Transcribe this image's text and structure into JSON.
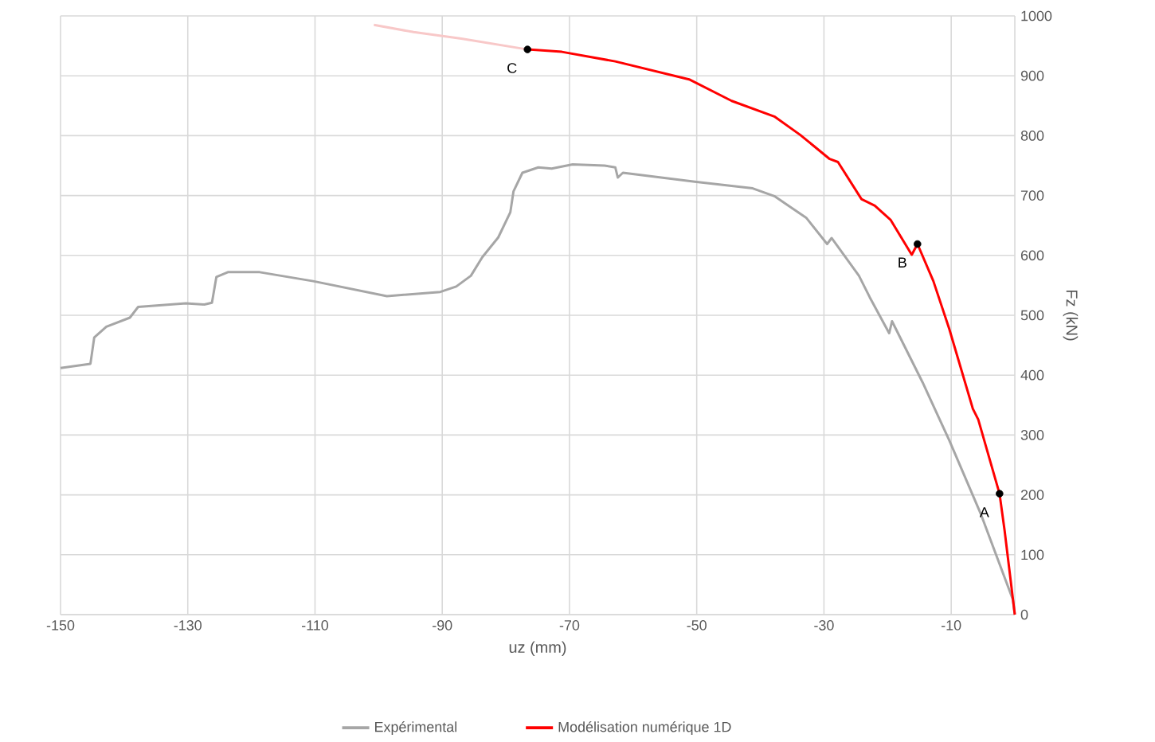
{
  "chart_data": {
    "type": "line",
    "xlabel": "uz (mm)",
    "ylabel": "Fz (kN)",
    "xlim": [
      -150,
      0
    ],
    "ylim": [
      0,
      1000
    ],
    "xticks": [
      -150,
      -130,
      -110,
      -90,
      -70,
      -50,
      -30,
      -10
    ],
    "yticks": [
      0,
      100,
      200,
      300,
      400,
      500,
      600,
      700,
      800,
      900,
      1000
    ],
    "grid": true,
    "legend": "bottom",
    "marker": "none",
    "line_style": "solid",
    "series": [
      {
        "name": "Expérimental",
        "color": "#a6a6a6",
        "x": [
          -150,
          -145.3,
          -144.7,
          -142.8,
          -139.1,
          -137.8,
          -130.3,
          -127.4,
          -126.2,
          -125.5,
          -123.7,
          -118.7,
          -110.3,
          -98.7,
          -90.3,
          -87.8,
          -85.5,
          -83.7,
          -81.2,
          -79.3,
          -78.8,
          -77.4,
          -74.9,
          -72.8,
          -69.5,
          -64.5,
          -62.8,
          -62.4,
          -61.6,
          -50.3,
          -41.2,
          -37.8,
          -32.8,
          -29.5,
          -28.8,
          -24.5,
          -22.8,
          -19.75,
          -19.3,
          -14.5,
          -10.3,
          -5.3,
          -0.3,
          0
        ],
        "values": [
          412,
          419,
          463,
          481,
          496,
          514,
          520,
          518,
          521,
          564,
          572,
          572,
          557,
          532,
          539,
          548,
          566,
          597,
          630,
          672,
          707,
          738,
          747,
          745,
          752,
          750,
          747,
          730,
          738,
          723,
          712,
          699,
          663,
          619,
          629,
          566,
          530,
          470,
          490,
          388,
          291,
          167,
          25,
          0
        ]
      },
      {
        "name": "Modélisation numérique 1D",
        "color": "#ff0000",
        "x": [
          -76.6,
          -71.2,
          -62.8,
          -51.2,
          -44.5,
          -37.8,
          -33.7,
          -29.1,
          -27.8,
          -24.1,
          -22,
          -19.5,
          -16.2,
          -15.3,
          -12.8,
          -10.3,
          -6.6,
          -5.75,
          -2.4,
          -1.6,
          0
        ],
        "values": [
          944,
          940,
          924,
          894,
          858,
          832,
          801,
          761,
          756,
          694,
          683,
          659,
          601,
          619,
          557,
          477,
          344,
          326,
          202,
          140,
          0
        ]
      },
      {
        "color": "#f8c8c8",
        "x": [
          -100.75,
          -94.5,
          -87,
          -76.6
        ],
        "values": [
          985,
          973,
          962,
          944
        ]
      },
      {
        "type": "scatter",
        "color": "#000000",
        "marker": "circle",
        "x": [
          -2.4,
          -15.3,
          -76.6
        ],
        "values": [
          202,
          619,
          944
        ]
      }
    ],
    "annotations": [
      {
        "text": "A",
        "x": -2.4,
        "y": 202
      },
      {
        "text": "B",
        "x": -15.3,
        "y": 619
      },
      {
        "text": "C",
        "x": -76.6,
        "y": 944
      }
    ]
  }
}
